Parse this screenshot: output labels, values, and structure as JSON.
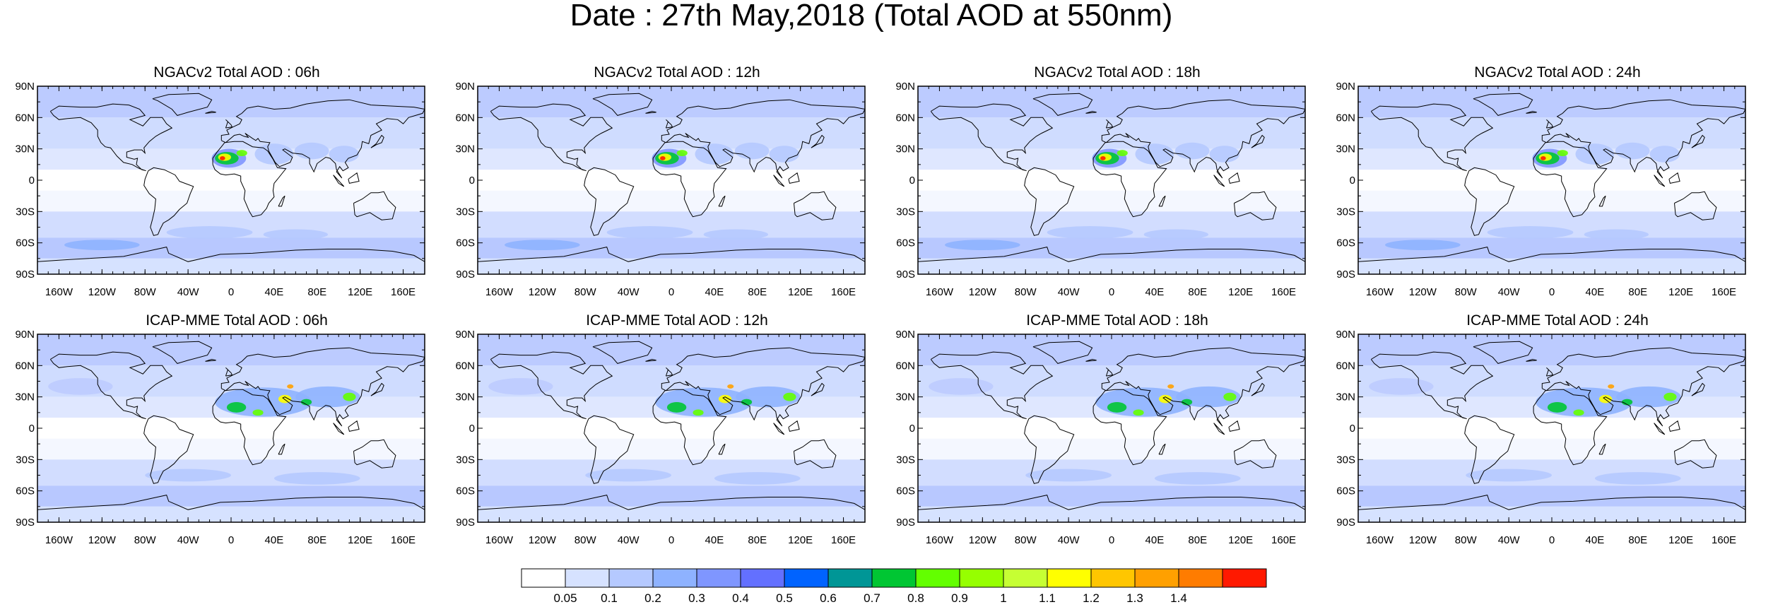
{
  "title": "Date : 27th May,2018 (Total AOD at 550nm)",
  "panels": [
    {
      "title": "NGACv2 Total AOD : 06h",
      "model": "NGACv2"
    },
    {
      "title": "NGACv2 Total AOD : 12h",
      "model": "NGACv2"
    },
    {
      "title": "NGACv2 Total AOD : 18h",
      "model": "NGACv2"
    },
    {
      "title": "NGACv2 Total AOD : 24h",
      "model": "NGACv2"
    },
    {
      "title": "ICAP-MME Total AOD : 06h",
      "model": "ICAP"
    },
    {
      "title": "ICAP-MME Total AOD : 12h",
      "model": "ICAP"
    },
    {
      "title": "ICAP-MME Total AOD : 18h",
      "model": "ICAP"
    },
    {
      "title": "ICAP-MME Total AOD : 24h",
      "model": "ICAP"
    }
  ],
  "lat_ticks": [
    "90N",
    "60N",
    "30N",
    "0",
    "30S",
    "60S",
    "90S"
  ],
  "lon_ticks": [
    "160W",
    "120W",
    "80W",
    "40W",
    "0",
    "40E",
    "80E",
    "120E",
    "160E"
  ],
  "colorbar": {
    "labels": [
      "0.05",
      "0.1",
      "0.2",
      "0.3",
      "0.4",
      "0.5",
      "0.6",
      "0.7",
      "0.8",
      "0.9",
      "1",
      "1.1",
      "1.2",
      "1.3",
      "1.4"
    ],
    "colors": [
      "#ffffff",
      "#d6e2ff",
      "#b5c9ff",
      "#8eb2ff",
      "#7f96ff",
      "#6370ff",
      "#0063ff",
      "#009696",
      "#00c633",
      "#63ff00",
      "#96ff00",
      "#c6ff33",
      "#ffff00",
      "#ffc600",
      "#ffa000",
      "#ff7c00",
      "#ff1900"
    ]
  }
}
